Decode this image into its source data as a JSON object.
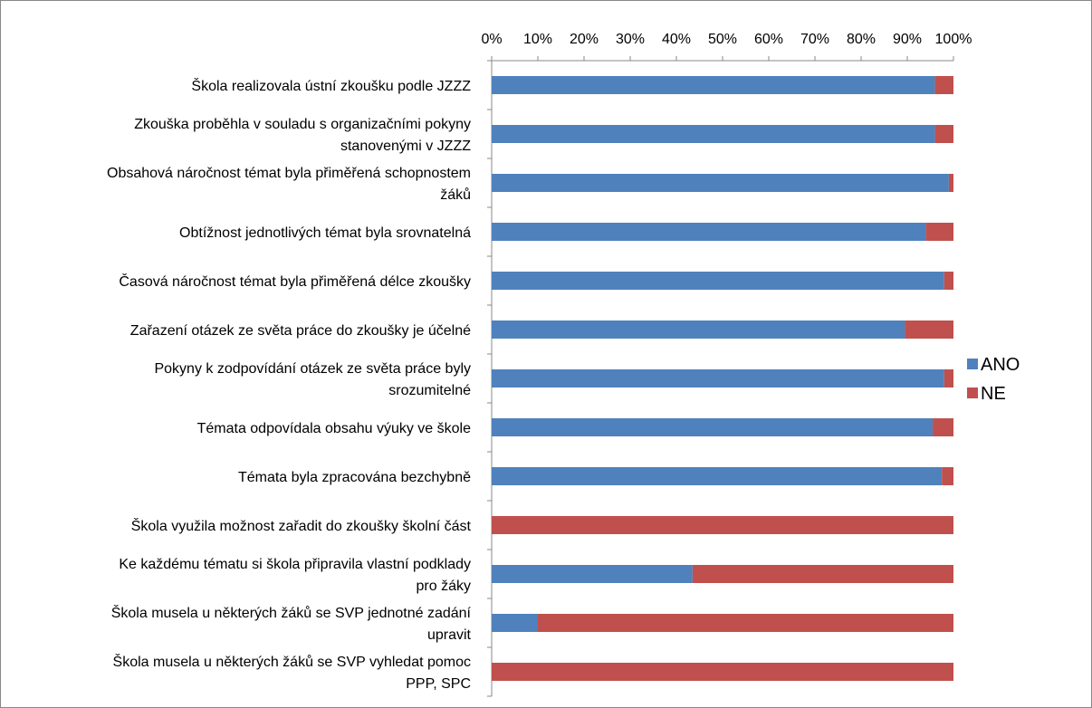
{
  "chart_data": {
    "type": "bar",
    "orientation": "horizontal",
    "stacked": "percent",
    "xlim": [
      0,
      100
    ],
    "x_ticks": [
      "0%",
      "10%",
      "20%",
      "30%",
      "40%",
      "50%",
      "60%",
      "70%",
      "80%",
      "90%",
      "100%"
    ],
    "x_axis_position": "top",
    "grid": false,
    "legend_position": "right",
    "categories": [
      [
        "Škola realizovala ústní zkoušku podle JZZZ"
      ],
      [
        "Zkouška proběhla v souladu s organizačními pokyny",
        "stanovenými v JZZZ"
      ],
      [
        "Obsahová náročnost témat byla přiměřená schopnostem",
        "žáků"
      ],
      [
        "Obtížnost jednotlivých témat byla srovnatelná"
      ],
      [
        "Časová náročnost témat byla přiměřená délce zkoušky"
      ],
      [
        "Zařazení otázek ze světa práce do zkoušky je účelné"
      ],
      [
        "Pokyny k zodpovídání otázek ze světa práce byly",
        "srozumitelné"
      ],
      [
        "Témata odpovídala obsahu výuky ve škole"
      ],
      [
        "Témata byla zpracována bezchybně"
      ],
      [
        "Škola využila možnost zařadit do zkoušky školní část"
      ],
      [
        "Ke každému tématu si škola připravila vlastní podklady",
        "pro žáky"
      ],
      [
        "Škola musela u některých žáků se SVP jednotné zadání",
        "upravit"
      ],
      [
        "Škola musela u některých žáků se SVP vyhledat pomoc",
        "PPP, SPC"
      ]
    ],
    "series": [
      {
        "name": "ANO",
        "color": "#4f81bd",
        "values": [
          96,
          96,
          99,
          94,
          98,
          89.5,
          98,
          95.5,
          97.5,
          0,
          43.5,
          10,
          0
        ]
      },
      {
        "name": "NE",
        "color": "#c0504d",
        "values": [
          4,
          4,
          1,
          6,
          2,
          10.5,
          2,
          4.5,
          2.5,
          100,
          56.5,
          90,
          100
        ]
      }
    ]
  }
}
